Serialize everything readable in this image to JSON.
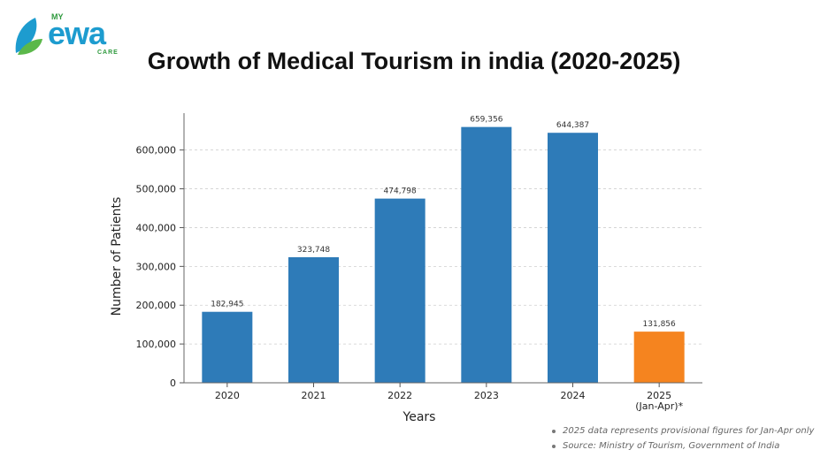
{
  "logo": {
    "my": "MY",
    "name": "ewa",
    "care": "CARE"
  },
  "colors": {
    "bar": "#2e7bb8",
    "highlight": "#f5841f",
    "grid": "#cfcfcf"
  },
  "chart_data": {
    "type": "bar",
    "title": "Growth of Medical Tourism in india (2020-2025)",
    "xlabel": "Years",
    "ylabel": "Number of Patients",
    "ylim": [
      0,
      695000
    ],
    "yticks": [
      0,
      100000,
      200000,
      300000,
      400000,
      500000,
      600000
    ],
    "ytick_labels": [
      "0",
      "100,000",
      "200,000",
      "300,000",
      "400,000",
      "500,000",
      "600,000"
    ],
    "categories": [
      [
        "2020"
      ],
      [
        "2021"
      ],
      [
        "2022"
      ],
      [
        "2023"
      ],
      [
        "2024"
      ],
      [
        "2025",
        "(Jan-Apr)*"
      ]
    ],
    "values": [
      182945,
      323748,
      474798,
      659356,
      644387,
      131856
    ],
    "value_labels": [
      "182,945",
      "323,748",
      "474,798",
      "659,356",
      "644,387",
      "131,856"
    ],
    "highlight_index": 5,
    "grid": "horizontal-dashed"
  },
  "notes": [
    "2025 data represents provisional figures for Jan-Apr only",
    "Source: Ministry of Tourism, Government of India"
  ]
}
